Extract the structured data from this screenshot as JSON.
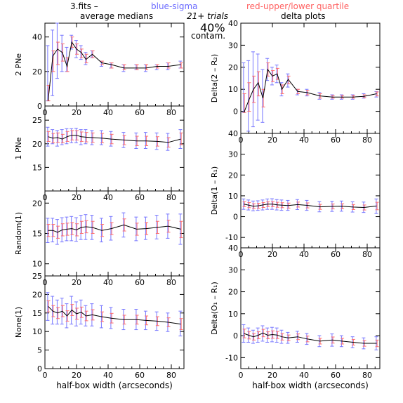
{
  "header": {
    "file_label": "3.fits  –",
    "blue_label": "blue-sigma",
    "red_label": "red-upper/lower quartile",
    "left_title": "average medians",
    "right_title": "delta plots",
    "trials": "21+ trials",
    "contam_pct": "40%",
    "contam_label": "contam."
  },
  "colors": {
    "line": "#000000",
    "sigma": "#7777ff",
    "quartile": "#ff6f6f",
    "axis": "#000000"
  },
  "chart_data": [
    {
      "type": "line",
      "panel": "left-1",
      "ylabel": "2 PNe",
      "xlabel": "",
      "xlim": [
        0,
        88
      ],
      "ylim": [
        0,
        48
      ],
      "yticks": [
        0,
        20,
        40
      ],
      "xticks": [
        0,
        20,
        40,
        60,
        80
      ],
      "series": [
        {
          "x": [
            2,
            5,
            8,
            11,
            14,
            17,
            20,
            23,
            26,
            30,
            36,
            42,
            50,
            58,
            64,
            71,
            78,
            86
          ],
          "y": [
            3,
            29,
            33,
            31,
            23,
            37,
            33,
            31,
            27,
            30,
            25,
            24,
            22,
            22,
            22,
            23,
            23,
            24
          ],
          "sigma_lo": [
            3,
            6,
            16,
            20,
            20,
            33,
            28,
            27,
            24,
            28,
            23,
            22,
            20,
            21,
            20,
            21,
            21,
            22
          ],
          "sigma_hi": [
            35,
            44,
            50,
            41,
            34,
            41,
            38,
            35,
            31,
            32,
            26,
            25,
            24,
            24,
            24,
            24,
            25,
            26
          ],
          "q_lo": [
            3,
            20,
            24,
            26,
            20,
            34,
            30,
            28,
            25,
            28,
            24,
            22,
            21,
            21,
            21,
            22,
            22,
            22
          ],
          "q_hi": [
            12,
            32,
            37,
            36,
            28,
            40,
            36,
            33,
            30,
            32,
            26,
            25,
            24,
            24,
            24,
            24,
            25,
            25
          ]
        }
      ]
    },
    {
      "type": "line",
      "panel": "left-2",
      "ylabel": "1 PNe",
      "xlabel": "",
      "xlim": [
        0,
        88
      ],
      "ylim": [
        10,
        28
      ],
      "yticks": [
        15,
        20,
        25
      ],
      "xticks": [
        0,
        20,
        40,
        60,
        80
      ],
      "series": [
        {
          "x": [
            2,
            5,
            8,
            11,
            14,
            17,
            20,
            23,
            26,
            30,
            36,
            42,
            50,
            58,
            64,
            71,
            78,
            86
          ],
          "y": [
            21.5,
            21.2,
            21.3,
            21,
            21.5,
            21.8,
            21.8,
            21.5,
            21.4,
            21.3,
            21.2,
            21,
            20.8,
            20.6,
            20.6,
            20.5,
            20.3,
            21
          ],
          "sigma_lo": [
            19.5,
            20,
            19.5,
            19.8,
            20,
            20.2,
            20.2,
            19.8,
            20,
            19.8,
            19.8,
            19.5,
            19.2,
            19,
            19,
            18.8,
            18.6,
            19
          ],
          "sigma_hi": [
            23.5,
            23,
            22.8,
            23,
            23.2,
            23.2,
            23.3,
            23,
            23,
            22.8,
            22.8,
            22.6,
            22.4,
            22.3,
            22.4,
            22.3,
            22.2,
            23
          ],
          "q_lo": [
            20.5,
            20.2,
            20.3,
            20.2,
            20.5,
            20.8,
            20.8,
            20.5,
            20.4,
            20.3,
            20.2,
            20,
            19.8,
            19.6,
            19.6,
            19.5,
            19.3,
            19.8
          ],
          "q_hi": [
            22.6,
            22.2,
            22.3,
            22,
            22.6,
            22.8,
            22.8,
            22.5,
            22.4,
            22.3,
            22.2,
            22,
            21.8,
            21.6,
            21.6,
            21.5,
            21.3,
            22.3
          ]
        }
      ]
    },
    {
      "type": "line",
      "panel": "left-3",
      "ylabel": "Random(1)",
      "xlabel": "",
      "xlim": [
        0,
        88
      ],
      "ylim": [
        8,
        22
      ],
      "yticks": [
        10,
        15,
        20
      ],
      "xticks": [
        0,
        20,
        40,
        60,
        80
      ],
      "series": [
        {
          "x": [
            2,
            5,
            8,
            11,
            14,
            17,
            20,
            23,
            26,
            30,
            36,
            42,
            50,
            58,
            64,
            71,
            78,
            86
          ],
          "y": [
            15.5,
            15.5,
            15.2,
            15.6,
            15.7,
            15.8,
            15.6,
            16,
            16.1,
            16,
            15.5,
            15.8,
            16.4,
            15.7,
            15.8,
            16,
            16.2,
            15.7
          ],
          "sigma_lo": [
            13.5,
            13.6,
            13.2,
            13.6,
            13.8,
            13.8,
            13.7,
            14,
            14,
            14,
            13.6,
            13.9,
            14.4,
            13.8,
            14,
            14.1,
            14.2,
            13.2
          ],
          "sigma_hi": [
            17.5,
            17.5,
            17.3,
            17.6,
            17.7,
            17.8,
            17.6,
            18,
            18.1,
            18,
            17.5,
            17.8,
            18.4,
            17.7,
            17.7,
            18,
            18.2,
            18.2
          ],
          "q_lo": [
            14.5,
            14.5,
            14.2,
            14.6,
            14.7,
            14.8,
            14.6,
            15,
            15.1,
            15,
            14.5,
            14.8,
            15.4,
            14.7,
            14.8,
            15,
            15.2,
            14.3
          ],
          "q_hi": [
            16.5,
            16.5,
            16.2,
            16.6,
            16.7,
            16.8,
            16.6,
            17,
            17.1,
            17,
            16.5,
            16.8,
            17.4,
            16.7,
            16.8,
            17,
            17.2,
            17
          ]
        }
      ]
    },
    {
      "type": "line",
      "panel": "left-4",
      "ylabel": "None(1)",
      "xlabel": "half-box width (arcseconds)",
      "xlim": [
        0,
        88
      ],
      "ylim": [
        0,
        25
      ],
      "yticks": [
        0,
        5,
        10,
        15,
        20,
        25
      ],
      "xticks": [
        0,
        20,
        40,
        60,
        80
      ],
      "series": [
        {
          "x": [
            2,
            5,
            8,
            11,
            14,
            17,
            20,
            23,
            26,
            30,
            36,
            42,
            50,
            58,
            64,
            71,
            78,
            86
          ],
          "y": [
            16.8,
            15.5,
            15,
            15.5,
            14.2,
            15.8,
            14.8,
            15.2,
            14.2,
            14.5,
            14,
            13.6,
            13.2,
            13.2,
            13,
            12.8,
            12.5,
            12
          ],
          "sigma_lo": [
            13,
            12,
            12,
            12,
            11,
            12,
            11.5,
            12,
            11.5,
            11.5,
            11,
            10.8,
            10.5,
            10.5,
            10.5,
            10.3,
            10,
            8.8
          ],
          "sigma_hi": [
            20.5,
            19.5,
            18.5,
            19,
            17.5,
            19.5,
            18,
            18.5,
            17,
            17.5,
            17,
            16.5,
            16,
            16,
            15.5,
            15.3,
            15,
            15.5
          ],
          "q_lo": [
            15.3,
            14,
            13.5,
            14,
            12.8,
            14.3,
            13.3,
            13.8,
            12.9,
            13.1,
            12.7,
            12.3,
            12,
            12,
            11.8,
            11.6,
            11.3,
            10.5
          ],
          "q_hi": [
            18.3,
            17,
            16.5,
            17,
            15.6,
            17.3,
            16.3,
            16.6,
            15.5,
            15.9,
            15.3,
            14.9,
            14.4,
            14.4,
            14.2,
            14,
            13.7,
            13.5
          ]
        }
      ]
    },
    {
      "type": "line",
      "panel": "right-1",
      "ylabel": "Delta(2 – R₂)",
      "xlabel": "",
      "xlim": [
        0,
        88
      ],
      "ylim": [
        -10,
        40
      ],
      "yticks": [
        0,
        10,
        20,
        30,
        40
      ],
      "xticks": [
        0,
        20,
        40,
        60,
        80
      ],
      "series": [
        {
          "x": [
            2,
            5,
            8,
            11,
            14,
            17,
            20,
            23,
            26,
            30,
            36,
            42,
            50,
            58,
            64,
            71,
            78,
            86
          ],
          "y": [
            -0.5,
            5,
            10,
            13,
            6,
            19,
            16,
            17,
            10,
            14.5,
            9,
            8.5,
            7,
            6.5,
            6.5,
            6.5,
            6.8,
            8
          ],
          "sigma_lo": [
            -0.5,
            -9,
            -7,
            -4,
            -5,
            14,
            12,
            13,
            7,
            11,
            7.5,
            7,
            5.5,
            5.5,
            5.5,
            5.5,
            6,
            6.5
          ],
          "sigma_hi": [
            22,
            23,
            27,
            26,
            19,
            24,
            20,
            21,
            13,
            17,
            10,
            10,
            8.5,
            7.5,
            7.5,
            7.5,
            8,
            9
          ],
          "q_lo": [
            -0.5,
            0,
            4,
            7,
            2,
            16,
            13.5,
            14.5,
            8,
            12.5,
            8,
            7.5,
            6,
            6,
            6,
            6,
            6.3,
            7
          ],
          "q_hi": [
            8,
            13,
            16,
            18,
            10,
            22,
            18.5,
            19.5,
            12,
            16,
            10,
            9.5,
            8,
            7.2,
            7.2,
            7.2,
            7.5,
            8.8
          ]
        }
      ]
    },
    {
      "type": "line",
      "panel": "right-2",
      "ylabel": "Delta(1 – R₁)",
      "xlabel": "",
      "xlim": [
        0,
        88
      ],
      "ylim": [
        -15,
        40
      ],
      "yticks": [
        -10,
        0,
        10,
        20,
        30,
        40
      ],
      "xticks": [
        0,
        20,
        40,
        60,
        80
      ],
      "series": [
        {
          "x": [
            2,
            5,
            8,
            11,
            14,
            17,
            20,
            23,
            26,
            30,
            36,
            42,
            50,
            58,
            64,
            71,
            78,
            86
          ],
          "y": [
            6,
            5.5,
            5,
            5.2,
            5.6,
            6,
            6,
            5.7,
            5.5,
            5.3,
            5.8,
            5.4,
            4.7,
            4.9,
            5,
            4.6,
            4.4,
            5.1
          ],
          "sigma_lo": [
            3.5,
            3.2,
            2.8,
            3,
            3.2,
            3.5,
            3.5,
            3.2,
            3,
            3,
            3.4,
            3,
            2.3,
            2.5,
            2.6,
            2.2,
            2,
            1.5
          ],
          "sigma_hi": [
            8.5,
            8,
            7.5,
            7.6,
            8,
            8.5,
            8.6,
            8.2,
            8,
            7.8,
            8.2,
            7.8,
            7.2,
            7.4,
            7.5,
            7.1,
            7,
            8.5
          ],
          "q_lo": [
            4.8,
            4.3,
            3.9,
            4,
            4.4,
            4.8,
            4.8,
            4.5,
            4.3,
            4.1,
            4.6,
            4.2,
            3.5,
            3.7,
            3.8,
            3.4,
            3.2,
            3.3
          ],
          "q_hi": [
            7.2,
            6.8,
            6.2,
            6.4,
            6.8,
            7.2,
            7.2,
            6.9,
            6.7,
            6.5,
            7,
            6.6,
            5.9,
            6.1,
            6.2,
            5.8,
            5.6,
            6.9
          ]
        }
      ]
    },
    {
      "type": "line",
      "panel": "right-3",
      "ylabel": "Delta(O₁ – R₁)",
      "xlabel": "half-box width (arcseconds)",
      "xlim": [
        0,
        88
      ],
      "ylim": [
        -15,
        40
      ],
      "yticks": [
        -10,
        0,
        10,
        20,
        30,
        40
      ],
      "xticks": [
        0,
        20,
        40,
        60,
        80
      ],
      "series": [
        {
          "x": [
            2,
            5,
            8,
            11,
            14,
            17,
            20,
            23,
            26,
            30,
            36,
            42,
            50,
            58,
            64,
            71,
            78,
            86
          ],
          "y": [
            1,
            0.2,
            -0.5,
            0.2,
            1.2,
            0.2,
            0.5,
            0.3,
            -0.5,
            -1,
            -0.5,
            -1.5,
            -2.5,
            -2,
            -2.5,
            -3,
            -3.5,
            -3.5
          ],
          "sigma_lo": [
            -3,
            -3,
            -3.5,
            -3,
            -2.5,
            -3,
            -2.8,
            -3,
            -3.5,
            -3.5,
            -3,
            -4,
            -5,
            -4.8,
            -5,
            -5.5,
            -6,
            -6.5
          ],
          "sigma_hi": [
            5,
            3.5,
            2.5,
            3.5,
            4.5,
            3.5,
            3.8,
            3.5,
            2.5,
            1.5,
            2,
            1,
            0,
            0.8,
            0,
            -0.5,
            -1,
            -0.5
          ],
          "q_lo": [
            -1,
            -1.5,
            -2,
            -1.4,
            -0.5,
            -1.4,
            -1.2,
            -1.3,
            -2,
            -2.3,
            -1.8,
            -2.8,
            -3.8,
            -3.4,
            -3.8,
            -4.3,
            -4.8,
            -5
          ],
          "q_hi": [
            3,
            1.9,
            1,
            1.8,
            2.9,
            1.8,
            2.2,
            1.9,
            1,
            0.3,
            0.8,
            -0.2,
            -1.2,
            -0.6,
            -1.2,
            -1.7,
            -2.2,
            -2
          ]
        }
      ]
    }
  ]
}
